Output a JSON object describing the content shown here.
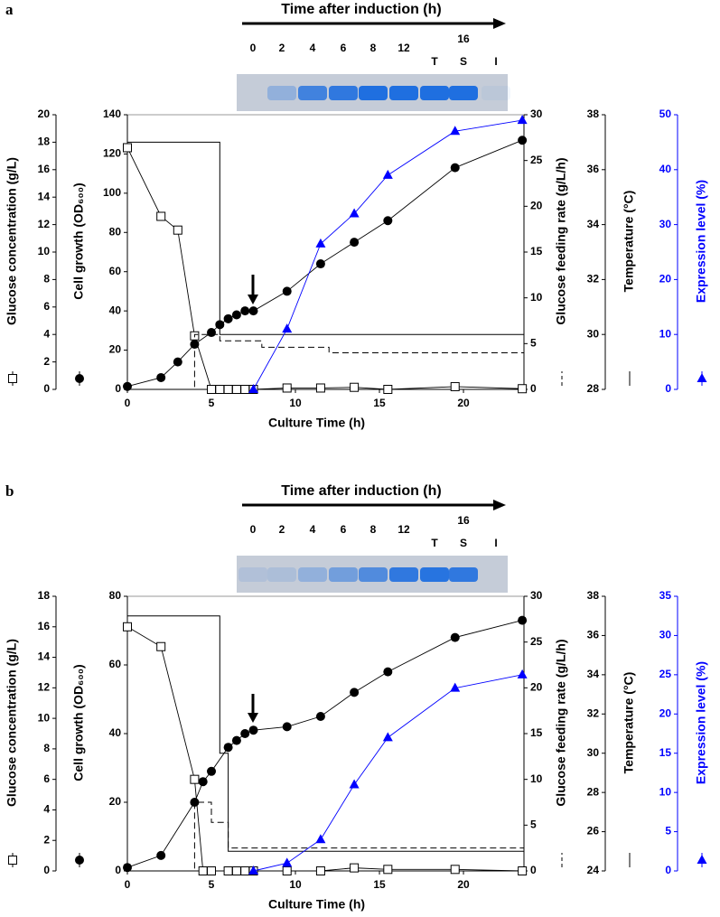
{
  "chart_data": [
    {
      "type": "line",
      "panel_label": "a",
      "gel_title": "Time after induction (h)",
      "gel_lanes": [
        "0",
        "2",
        "4",
        "6",
        "8",
        "12",
        "T",
        "S",
        "I"
      ],
      "gel_span_label": "16",
      "xlabel": "Culture Time (h)",
      "xlim": [
        0,
        23.6
      ],
      "xticks": [
        0,
        5,
        10,
        15,
        20
      ],
      "axes": [
        {
          "label": "Glucose concentration (g/L)",
          "lim": [
            0,
            20
          ],
          "ticks": [
            0,
            2,
            4,
            6,
            8,
            10,
            12,
            14,
            16,
            18,
            20
          ],
          "color": "#000000"
        },
        {
          "label": "Cell growth (OD₆₀₀)",
          "lim": [
            0,
            140
          ],
          "ticks": [
            0,
            20,
            40,
            60,
            80,
            100,
            120,
            140
          ],
          "color": "#000000"
        },
        {
          "label": "Glucose feeding rate (g/L/h)",
          "lim": [
            0,
            30
          ],
          "ticks": [
            0,
            5,
            10,
            15,
            20,
            25,
            30
          ],
          "color": "#000000"
        },
        {
          "label": "Temperature (°C)",
          "lim": [
            28,
            38
          ],
          "ticks": [
            28,
            30,
            32,
            34,
            36,
            38
          ],
          "color": "#000000"
        },
        {
          "label": "Expression level (%)",
          "lim": [
            0,
            50
          ],
          "ticks": [
            0,
            10,
            20,
            30,
            40,
            50
          ],
          "color": "#0000ff"
        }
      ],
      "series": [
        {
          "axis": 0,
          "marker": "square",
          "color": "#000000",
          "x": [
            0,
            2,
            3,
            4,
            5,
            5.5,
            6,
            6.5,
            7,
            7.5,
            9.5,
            11.5,
            13.5,
            15.5,
            19.5,
            23.5
          ],
          "values": [
            17.6,
            12.6,
            11.6,
            3.9,
            0,
            0,
            0,
            0,
            0,
            0,
            0.1,
            0.1,
            0.15,
            0,
            0.2,
            0.05
          ]
        },
        {
          "axis": 1,
          "marker": "circle",
          "color": "#000000",
          "x": [
            0,
            2,
            3,
            4,
            5,
            5.5,
            6,
            6.5,
            7,
            7.5,
            9.5,
            11.5,
            13.5,
            15.5,
            19.5,
            23.5
          ],
          "values": [
            1.5,
            6,
            14,
            23,
            29,
            33,
            36,
            38,
            40,
            40,
            50,
            64,
            75,
            86,
            113,
            127
          ]
        },
        {
          "axis": 2,
          "marker": "none",
          "dashed": true,
          "color": "#000000",
          "x": [
            0,
            4,
            4,
            5.5,
            5.5,
            8,
            8,
            12,
            12,
            23.6
          ],
          "values": [
            0,
            0,
            6,
            6,
            5.3,
            5.3,
            4.6,
            4.6,
            4,
            4
          ]
        },
        {
          "axis": 3,
          "marker": "none",
          "color": "#000000",
          "x": [
            0,
            5.5,
            5.5,
            23.6
          ],
          "values": [
            37,
            37,
            30,
            30
          ]
        },
        {
          "axis": 4,
          "marker": "triangle",
          "color": "#0000ff",
          "x": [
            7.5,
            9.5,
            11.5,
            13.5,
            15.5,
            19.5,
            23.5
          ],
          "values": [
            0,
            11,
            26.5,
            32,
            39,
            47,
            49
          ]
        }
      ]
    },
    {
      "type": "line",
      "panel_label": "b",
      "gel_title": "Time after induction (h)",
      "gel_lanes": [
        "0",
        "2",
        "4",
        "6",
        "8",
        "12",
        "T",
        "S",
        "I"
      ],
      "gel_span_label": "16",
      "xlabel": "Culture Time (h)",
      "xlim": [
        0,
        23.6
      ],
      "xticks": [
        0,
        5,
        10,
        15,
        20
      ],
      "axes": [
        {
          "label": "Glucose concentration (g/L)",
          "lim": [
            0,
            18
          ],
          "ticks": [
            0,
            2,
            4,
            6,
            8,
            10,
            12,
            14,
            16,
            18
          ],
          "color": "#000000"
        },
        {
          "label": "Cell growth (OD₆₀₀)",
          "lim": [
            0,
            80
          ],
          "ticks": [
            0,
            20,
            40,
            60,
            80
          ],
          "color": "#000000"
        },
        {
          "label": "Glucose feeding rate (g/L/h)",
          "lim": [
            0,
            30
          ],
          "ticks": [
            0,
            5,
            10,
            15,
            20,
            25,
            30
          ],
          "color": "#000000"
        },
        {
          "label": "Temperature (°C)",
          "lim": [
            24,
            38
          ],
          "ticks": [
            24,
            26,
            28,
            30,
            32,
            34,
            36,
            38
          ],
          "color": "#000000"
        },
        {
          "label": "Expression level (%)",
          "lim": [
            0,
            35
          ],
          "ticks": [
            0,
            5,
            10,
            15,
            20,
            25,
            30,
            35
          ],
          "color": "#0000ff"
        }
      ],
      "series": [
        {
          "axis": 0,
          "marker": "square",
          "color": "#000000",
          "x": [
            0,
            2,
            4,
            4.5,
            5,
            6,
            6.5,
            7,
            7.5,
            9.5,
            11.5,
            13.5,
            15.5,
            19.5,
            23.5
          ],
          "values": [
            16,
            14.7,
            6,
            0,
            0,
            0,
            0,
            0,
            0,
            0,
            0,
            0.2,
            0.1,
            0.1,
            0
          ]
        },
        {
          "axis": 1,
          "marker": "circle",
          "color": "#000000",
          "x": [
            0,
            2,
            4,
            4.5,
            5,
            6,
            6.5,
            7,
            7.5,
            9.5,
            11.5,
            13.5,
            15.5,
            19.5,
            23.5
          ],
          "values": [
            1,
            4.5,
            20,
            26,
            29,
            36,
            38,
            40,
            41,
            42,
            45,
            52,
            58,
            68,
            73
          ]
        },
        {
          "axis": 2,
          "marker": "none",
          "dashed": true,
          "color": "#000000",
          "x": [
            0,
            4,
            4,
            5,
            5,
            6,
            6,
            23.6
          ],
          "values": [
            0,
            0,
            7.5,
            7.5,
            5.3,
            5.3,
            2.5,
            2.5
          ]
        },
        {
          "axis": 3,
          "marker": "none",
          "color": "#000000",
          "x": [
            0,
            5.5,
            5.5,
            6,
            6,
            23.6
          ],
          "values": [
            37,
            37,
            30,
            30,
            25,
            25
          ]
        },
        {
          "axis": 4,
          "marker": "triangle",
          "color": "#0000ff",
          "x": [
            7.5,
            9.5,
            11.5,
            13.5,
            15.5,
            19.5,
            23.5
          ],
          "values": [
            0,
            1,
            4,
            11,
            17,
            23.3,
            25
          ]
        }
      ]
    }
  ]
}
